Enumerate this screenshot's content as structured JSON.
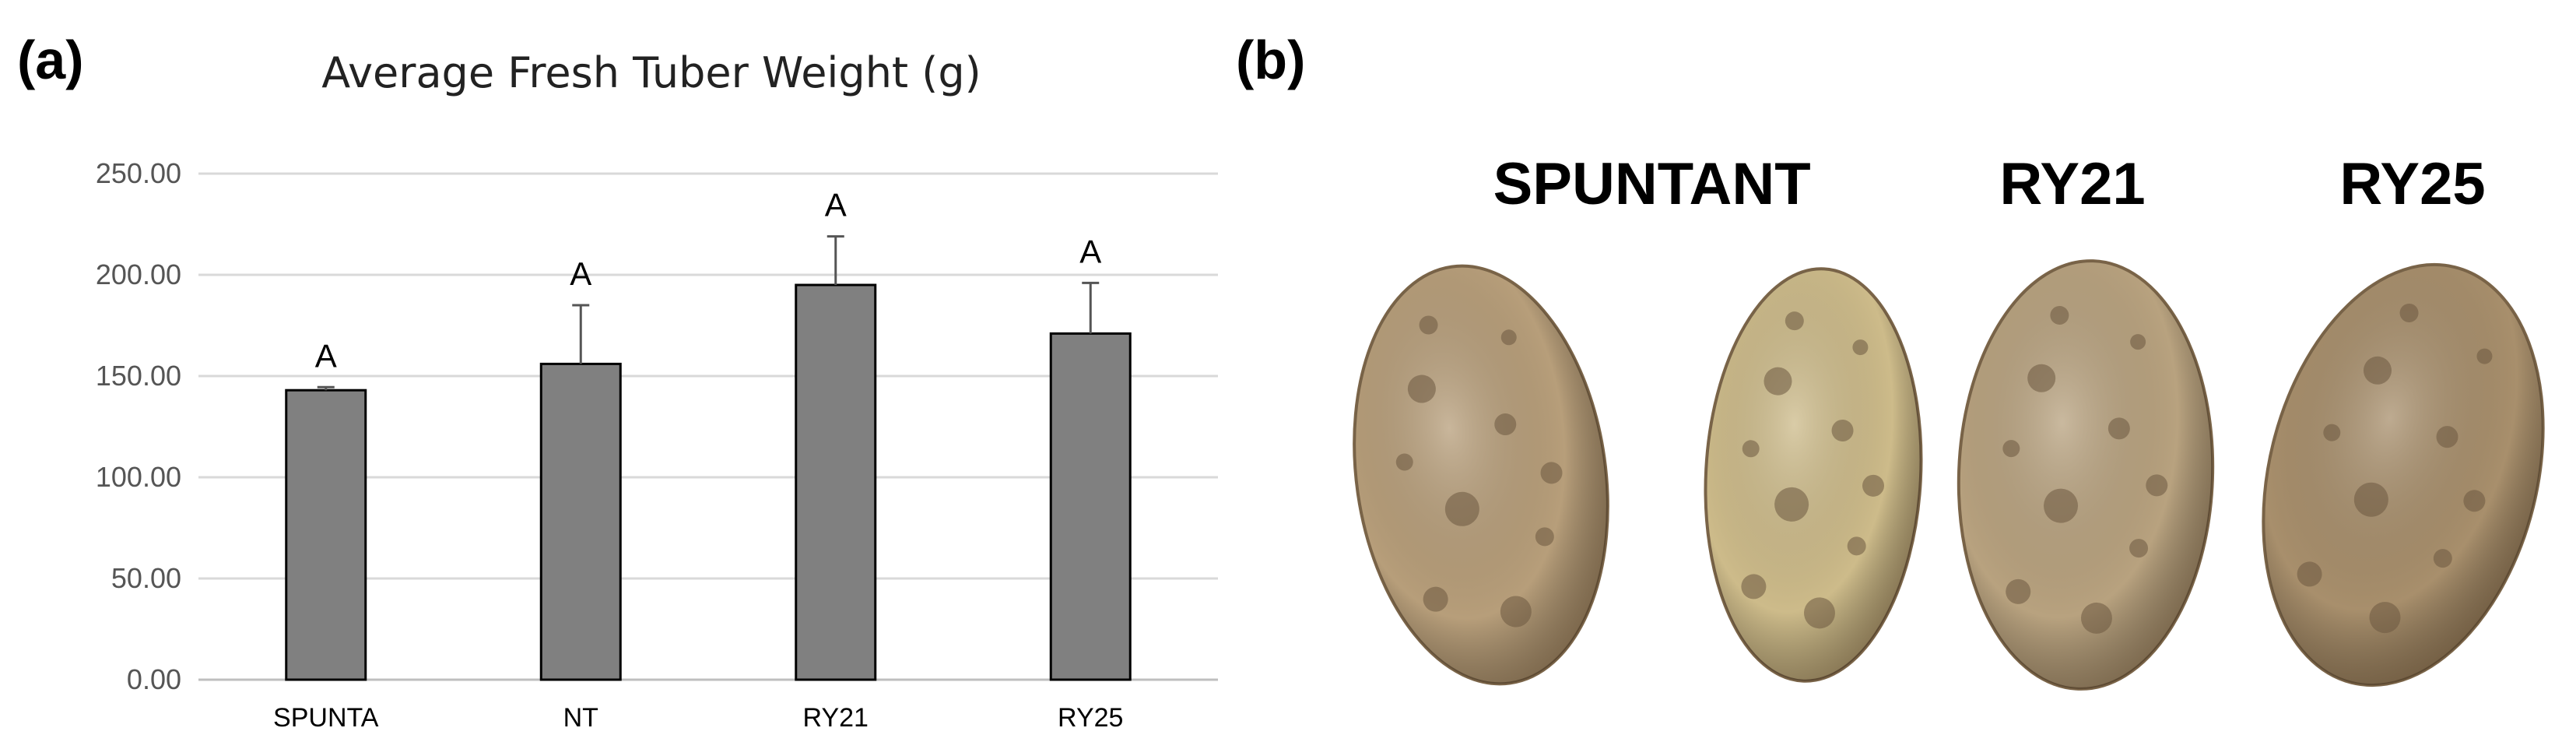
{
  "panel_a_label": "(a)",
  "panel_b_label": "(b)",
  "chart_data": {
    "type": "bar",
    "title": "Average Fresh Tuber Weight (g)",
    "xlabel": "",
    "ylabel": "",
    "categories": [
      "SPUNTA",
      "NT",
      "RY21",
      "RY25"
    ],
    "values": [
      143,
      156,
      195,
      171
    ],
    "error": [
      1.5,
      29,
      24,
      25
    ],
    "significance": [
      "A",
      "A",
      "A",
      "A"
    ],
    "ylim": [
      0,
      250
    ],
    "yticks": [
      "0.00",
      "50.00",
      "100.00",
      "150.00",
      "200.00",
      "250.00"
    ],
    "grid": true,
    "bar_color": "#808080"
  },
  "photo": {
    "labels": [
      "SPUNTA",
      "NT",
      "RY21",
      "RY25"
    ],
    "skin_colors": [
      "#b79e7a",
      "#cdbb8a",
      "#b8a27f",
      "#a88f6c"
    ]
  }
}
